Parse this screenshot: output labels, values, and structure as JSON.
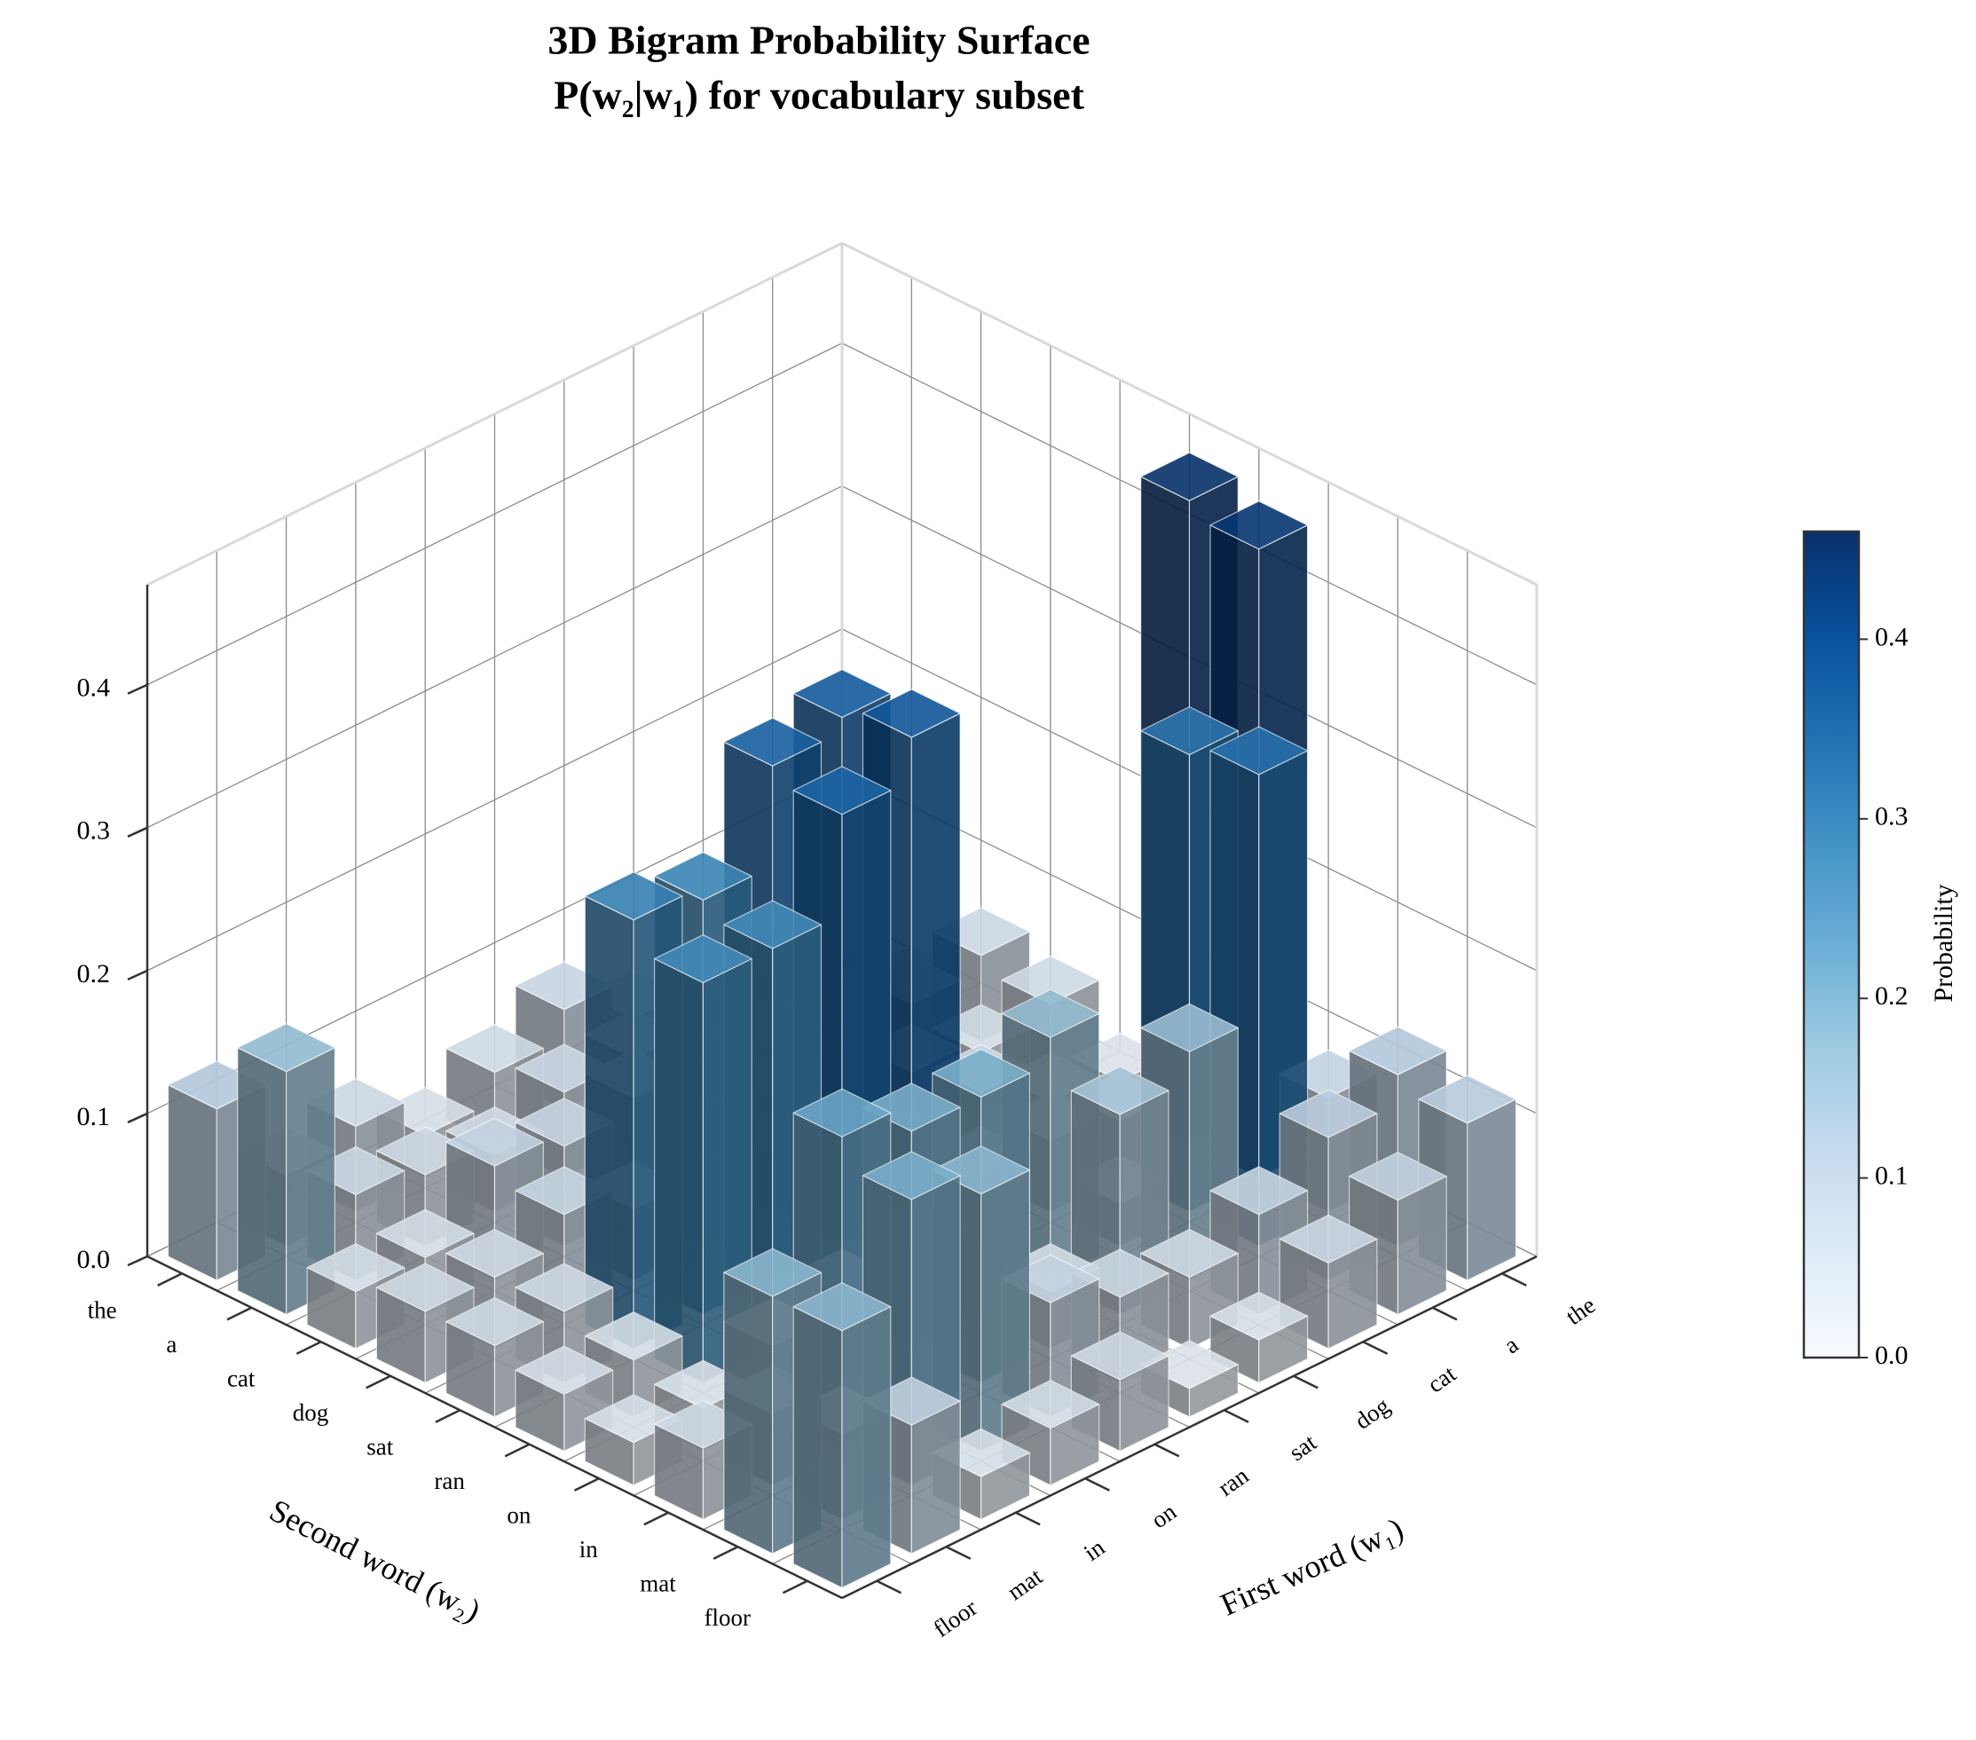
{
  "chart_data": {
    "type": "bar3d",
    "title": "3D Bigram Probability Surface",
    "subtitle": "P(w₂|w₁) for vocabulary subset",
    "xlabel": "First word (w₁)",
    "ylabel": "Second word (w₂)",
    "colorbar_label": "Probability",
    "x_categories": [
      "the",
      "a",
      "cat",
      "dog",
      "sat",
      "ran",
      "on",
      "in",
      "mat",
      "floor"
    ],
    "y_categories": [
      "the",
      "a",
      "cat",
      "dog",
      "sat",
      "ran",
      "on",
      "in",
      "mat",
      "floor"
    ],
    "values": [
      [
        0.01,
        0.01,
        0.06,
        0.05,
        0.02,
        0.45,
        0.44,
        0.08,
        0.12,
        0.11
      ],
      [
        0.02,
        0.01,
        0.05,
        0.04,
        0.03,
        0.04,
        0.32,
        0.33,
        0.1,
        0.08
      ],
      [
        0.03,
        0.02,
        0.04,
        0.05,
        0.06,
        0.05,
        0.03,
        0.16,
        0.07,
        0.06
      ],
      [
        0.04,
        0.05,
        0.03,
        0.06,
        0.04,
        0.05,
        0.17,
        0.14,
        0.05,
        0.03
      ],
      [
        0.07,
        0.06,
        0.05,
        0.04,
        0.37,
        0.38,
        0.05,
        0.04,
        0.06,
        0.02
      ],
      [
        0.05,
        0.06,
        0.08,
        0.06,
        0.36,
        0.35,
        0.07,
        0.2,
        0.08,
        0.05
      ],
      [
        0.03,
        0.04,
        0.07,
        0.05,
        0.29,
        0.28,
        0.06,
        0.2,
        0.18,
        0.04
      ],
      [
        0.06,
        0.05,
        0.08,
        0.07,
        0.3,
        0.28,
        0.05,
        0.22,
        0.2,
        0.03
      ],
      [
        0.05,
        0.06,
        0.04,
        0.05,
        0.05,
        0.04,
        0.03,
        0.05,
        0.06,
        0.09
      ],
      [
        0.12,
        0.17,
        0.04,
        0.05,
        0.05,
        0.04,
        0.03,
        0.05,
        0.18,
        0.18
      ]
    ],
    "zlim": [
      0,
      0.47
    ],
    "zticks": [
      {
        "value": 0,
        "label": "0.0"
      },
      {
        "value": 0.1,
        "label": "0.1"
      },
      {
        "value": 0.2,
        "label": "0.2"
      },
      {
        "value": 0.3,
        "label": "0.3"
      },
      {
        "value": 0.4,
        "label": "0.4"
      }
    ],
    "clim": [
      0,
      0.46
    ],
    "cticks": [
      {
        "value": 0,
        "label": "0.0"
      },
      {
        "value": 0.1,
        "label": "0.1"
      },
      {
        "value": 0.2,
        "label": "0.2"
      },
      {
        "value": 0.3,
        "label": "0.3"
      },
      {
        "value": 0.4,
        "label": "0.4"
      }
    ],
    "colorscale": [
      "#f7fbff",
      "#deebf7",
      "#c6dbef",
      "#9ecae1",
      "#6baed6",
      "#4292c6",
      "#2171b5",
      "#08519c",
      "#08306b"
    ],
    "grid": true
  }
}
